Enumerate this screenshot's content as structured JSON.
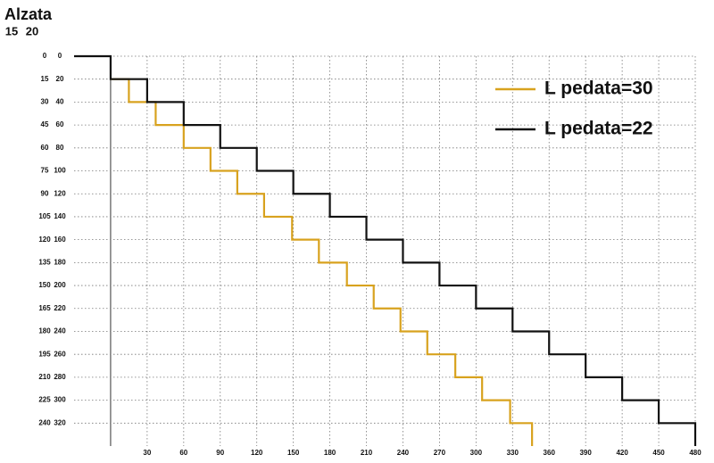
{
  "chart_data": {
    "type": "line",
    "y_label": "Alzata",
    "ytick_header": "15",
    "y2tick_header": "20",
    "xlim": [
      -30,
      480
    ],
    "xticks": [
      30,
      60,
      90,
      120,
      150,
      180,
      210,
      240,
      270,
      300,
      330,
      360,
      390,
      420,
      450,
      480
    ],
    "ylim": [
      0,
      255
    ],
    "yticks": [
      0,
      15,
      30,
      45,
      60,
      75,
      90,
      105,
      120,
      135,
      150,
      165,
      180,
      195,
      210,
      225,
      240
    ],
    "y2lim": [
      0,
      340
    ],
    "y2ticks": [
      0,
      20,
      40,
      60,
      80,
      100,
      120,
      140,
      160,
      180,
      200,
      220,
      240,
      260,
      280,
      300,
      320
    ],
    "y_inverted": true,
    "grid": true,
    "legend": "top-right",
    "series": [
      {
        "name": "L pedata=30",
        "color": "#d8a21e",
        "x": [
          0,
          15,
          15,
          37,
          37,
          60,
          60,
          82,
          82,
          104,
          104,
          126,
          126,
          149,
          149,
          171,
          171,
          194,
          194,
          216,
          216,
          238,
          238,
          260,
          260,
          283,
          283,
          305,
          305,
          328,
          328,
          346,
          346
        ],
        "values": [
          15,
          15,
          30,
          30,
          45,
          45,
          60,
          60,
          75,
          75,
          90,
          90,
          105,
          105,
          120,
          120,
          135,
          135,
          150,
          150,
          165,
          165,
          180,
          180,
          195,
          195,
          210,
          210,
          225,
          225,
          240,
          240,
          255
        ]
      },
      {
        "name": "L pedata=22",
        "color": "#111111",
        "x": [
          -30,
          0,
          0,
          30,
          30,
          60,
          60,
          90,
          90,
          120,
          120,
          150,
          150,
          180,
          180,
          210,
          210,
          240,
          240,
          270,
          270,
          300,
          300,
          330,
          330,
          360,
          360,
          390,
          390,
          420,
          420,
          450,
          450,
          480,
          480
        ],
        "values": [
          0,
          0,
          15,
          15,
          30,
          30,
          45,
          45,
          60,
          60,
          75,
          75,
          90,
          90,
          105,
          105,
          120,
          120,
          135,
          135,
          150,
          150,
          165,
          165,
          180,
          180,
          195,
          195,
          210,
          210,
          225,
          225,
          240,
          240,
          255
        ]
      }
    ]
  }
}
